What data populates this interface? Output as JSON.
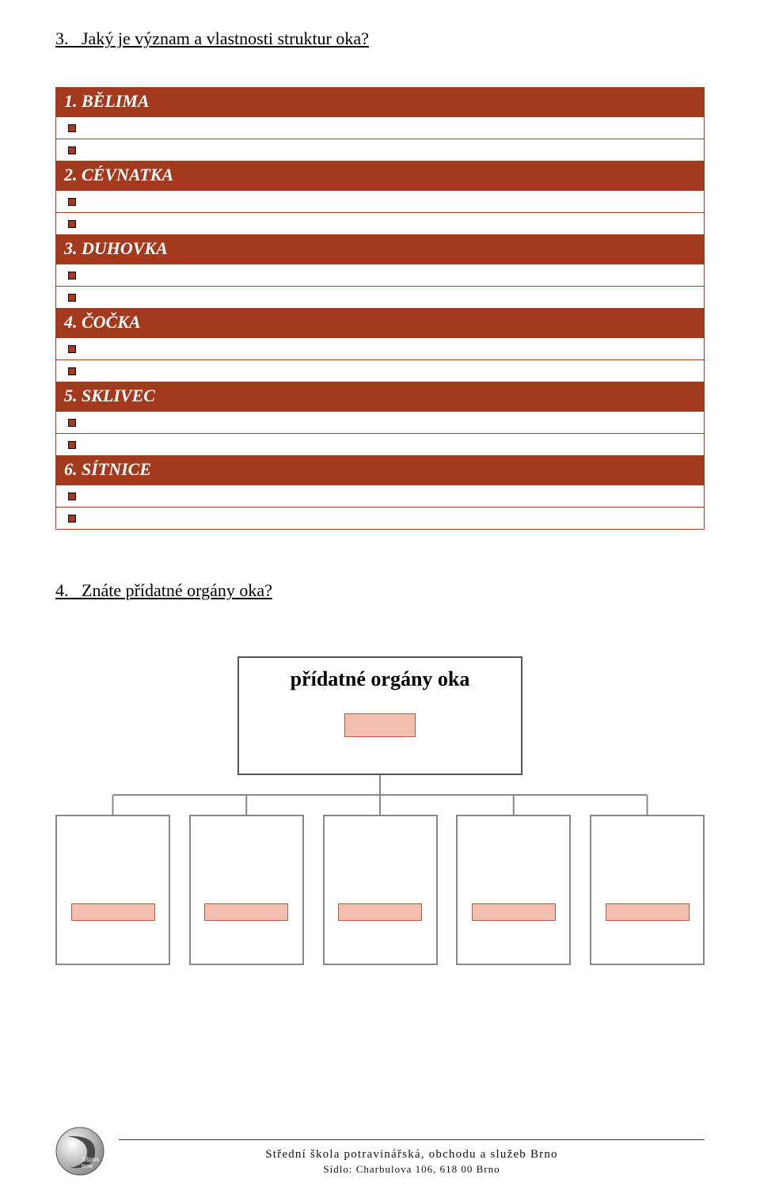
{
  "question3": {
    "number": "3.",
    "text": "Jaký je význam a vlastnosti struktur oka?"
  },
  "sections": [
    {
      "label": "1. BĚLIMA"
    },
    {
      "label": "2. CÉVNATKA"
    },
    {
      "label": "3. DUHOVKA"
    },
    {
      "label": "4. ČOČKA"
    },
    {
      "label": "5. SKLIVEC"
    },
    {
      "label": "6. SÍTNICE"
    }
  ],
  "question4": {
    "number": "4.",
    "text": "Znáte přídatné orgány oka?"
  },
  "orgchart": {
    "root_label": "přídatné orgány oka",
    "child_count": 5,
    "root_box_border": "#555555",
    "child_box_border": "#888888",
    "accent_fill": "#f2bfb1",
    "accent_border": "#b85c40",
    "connector_color": "#888888"
  },
  "colors": {
    "header_bg": "#a33a1d",
    "header_text": "#ffffff",
    "bullet_fill": "#a33a1d",
    "bullet_outline": "#000000"
  },
  "footer": {
    "line1": "Střední škola potravinářská, obchodu a služeb Brno",
    "line2": "Sídlo: Charbulova 106, 618 00 Brno",
    "logo_text_top": "Sšpos",
    "logo_text_bottom": "brno"
  }
}
